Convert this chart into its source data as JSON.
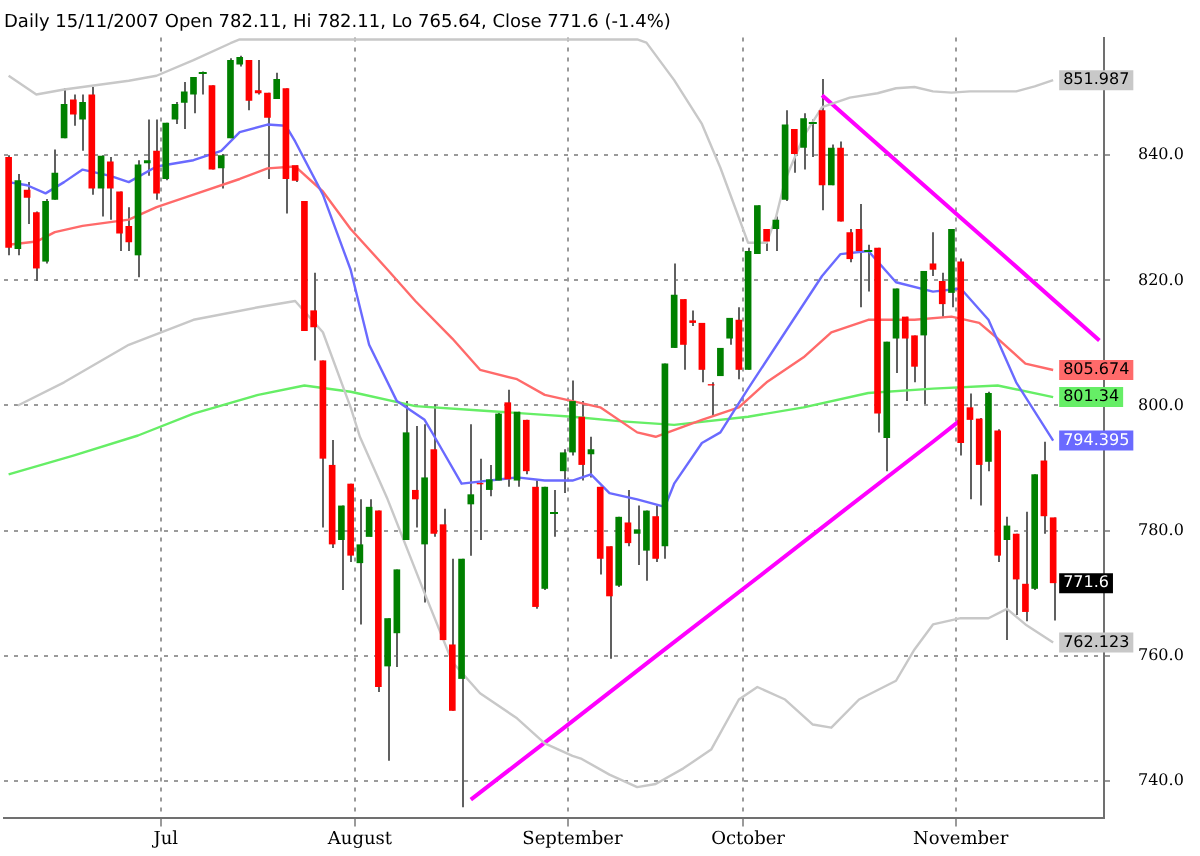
{
  "chart_data": {
    "type": "candlestick",
    "title": "Daily 15/11/2007 Open 782.11, Hi 782.11, Lo 765.64, Close 771.6 (-1.4%)",
    "categories": [
      null,
      null,
      null,
      null,
      null,
      null,
      null,
      null,
      null,
      null,
      null,
      null,
      null,
      null,
      null,
      null,
      null,
      "Jul",
      null,
      null,
      null,
      null,
      null,
      null,
      null,
      null,
      null,
      null,
      null,
      null,
      null,
      null,
      null,
      null,
      null,
      null,
      null,
      null,
      "August",
      null,
      null,
      null,
      null,
      null,
      null,
      null,
      null,
      null,
      null,
      null,
      null,
      null,
      null,
      null,
      null,
      null,
      null,
      null,
      null,
      null,
      null,
      "September",
      null,
      null,
      null,
      null,
      null,
      null,
      null,
      null,
      null,
      null,
      null,
      null,
      null,
      null,
      null,
      null,
      null,
      null,
      "October",
      null,
      null,
      null,
      null,
      null,
      null,
      null,
      null,
      null,
      null,
      null,
      null,
      null,
      null,
      null,
      null,
      null,
      null,
      null,
      null,
      null,
      null,
      "November",
      null,
      null,
      null,
      null,
      null,
      null,
      null,
      null,
      null,
      null,
      null,
      null,
      null,
      null,
      null
    ],
    "ohlc": [
      [
        839.7,
        840,
        824,
        825.2
      ],
      [
        825,
        837,
        824,
        836
      ],
      [
        834.5,
        835.7,
        829,
        833.2
      ],
      [
        830.9,
        831,
        819.9,
        821.9
      ],
      [
        823,
        833,
        822.7,
        832.7
      ],
      [
        832.9,
        840.9,
        832.9,
        837.2
      ],
      [
        842.7,
        850.7,
        842.7,
        848.2
      ],
      [
        848.9,
        849.7,
        844.7,
        846.5
      ],
      [
        845.7,
        849.7,
        840.7,
        848.5
      ],
      [
        849.7,
        850.9,
        833.7,
        834.7
      ],
      [
        834.7,
        840,
        830.2,
        839.9
      ],
      [
        839,
        839.7,
        829.7,
        834.7
      ],
      [
        834.2,
        834.2,
        824.7,
        827.5
      ],
      [
        828.7,
        831.7,
        824.7,
        826.1
      ],
      [
        824,
        839.2,
        820.5,
        838.5
      ],
      [
        838.7,
        845.7,
        836.7,
        839.2
      ],
      [
        840.7,
        845.7,
        832.9,
        833.9
      ],
      [
        836.2,
        845.2,
        836,
        845.2
      ],
      [
        845.7,
        848.5,
        845,
        848.2
      ],
      [
        848.4,
        851.7,
        844.2,
        850.2
      ],
      [
        849.7,
        852.5,
        846.7,
        852.5
      ],
      [
        853.4,
        853.4,
        849.7,
        853.4
      ],
      [
        851.2,
        851.2,
        837.7,
        837.7
      ],
      [
        837.9,
        840.2,
        834.7,
        840
      ],
      [
        842.7,
        855.5,
        842.7,
        855.2
      ],
      [
        854.5,
        855.9,
        854.2,
        855.7
      ],
      [
        855.2,
        855.2,
        847.2,
        848.7
      ],
      [
        850.4,
        855.2,
        849.7,
        849.9
      ],
      [
        850,
        850,
        836.2,
        846
      ],
      [
        849,
        853.2,
        849,
        852.2
      ],
      [
        850.7,
        850.7,
        830.7,
        836.2
      ],
      [
        838.4,
        838.4,
        835.7,
        835.9
      ],
      [
        832.7,
        832.7,
        811.9,
        811.9
      ],
      [
        815.2,
        821.2,
        807.2,
        812.5
      ],
      [
        807.2,
        807.2,
        780.5,
        791.5
      ],
      [
        790.5,
        794.5,
        777.2,
        777.8
      ],
      [
        778.5,
        784,
        770.5,
        784
      ],
      [
        787.5,
        787.5,
        775,
        776
      ],
      [
        774.8,
        785,
        765,
        777.8
      ],
      [
        779,
        785,
        779,
        783.8
      ],
      [
        783.2,
        783.2,
        754.2,
        755
      ],
      [
        758.3,
        766,
        743.2,
        766
      ],
      [
        763.6,
        773.8,
        758.2,
        773.8
      ],
      [
        778.5,
        800.7,
        778.5,
        795.7
      ],
      [
        786.5,
        796.7,
        780.5,
        785
      ],
      [
        777.8,
        797,
        768.5,
        788.5
      ],
      [
        793,
        800.2,
        779,
        779.5
      ],
      [
        781,
        783.5,
        762.5,
        762.5
      ],
      [
        761.8,
        775.5,
        751.2,
        751.2
      ],
      [
        756.3,
        775.5,
        735.8,
        775.5
      ],
      [
        784.2,
        797,
        776,
        785.8
      ],
      [
        787.6,
        791.5,
        778.5,
        787.4
      ],
      [
        786.5,
        790.5,
        785.5,
        788.2
      ],
      [
        788,
        799,
        788,
        798.7
      ],
      [
        800.5,
        802.5,
        787,
        788.2
      ],
      [
        788,
        799,
        787,
        799
      ],
      [
        797.7,
        797.7,
        789,
        789.5
      ],
      [
        787,
        788,
        767.5,
        767.8
      ],
      [
        770.7,
        787,
        770.5,
        787
      ],
      [
        783,
        786.5,
        779,
        783
      ],
      [
        789.5,
        793,
        786,
        792.5
      ],
      [
        792.5,
        804,
        792,
        800.7
      ],
      [
        798.2,
        800.7,
        788,
        790.5
      ],
      [
        792.2,
        795,
        788.5,
        793
      ],
      [
        787,
        787,
        773,
        775.5
      ],
      [
        777.5,
        777.5,
        759.5,
        769.5
      ],
      [
        771.2,
        782.2,
        771,
        782.2
      ],
      [
        781.3,
        786.5,
        777.5,
        778
      ],
      [
        779.5,
        784,
        774.5,
        780.2
      ],
      [
        776.8,
        783.2,
        772,
        783.2
      ],
      [
        782.3,
        784,
        775,
        775.5
      ],
      [
        777.5,
        806.7,
        775.5,
        806.7
      ],
      [
        809.2,
        822.7,
        809.2,
        817.7
      ],
      [
        817,
        817,
        805.7,
        809.7
      ],
      [
        813.6,
        815.2,
        812.7,
        813.2
      ],
      [
        813.2,
        813.2,
        803.7,
        805.7
      ],
      [
        803.4,
        803.7,
        798.2,
        803.2
      ],
      [
        804.7,
        809.2,
        804.7,
        809.2
      ],
      [
        810.7,
        814,
        809.7,
        814
      ],
      [
        813.7,
        815.7,
        804.2,
        805.7
      ],
      [
        805.7,
        825.2,
        805.7,
        824.7
      ],
      [
        824.2,
        832,
        824.2,
        832
      ],
      [
        828.2,
        828.2,
        824.7,
        826.2
      ],
      [
        828.2,
        830.2,
        824.7,
        829.7
      ],
      [
        832.9,
        847.2,
        832.7,
        844.9
      ],
      [
        844.2,
        844.2,
        837.2,
        840.2
      ],
      [
        841.2,
        846.7,
        837.7,
        845.9
      ],
      [
        845.2,
        845.7,
        839.7,
        845.2
      ],
      [
        847.2,
        852.2,
        831.2,
        835.2
      ],
      [
        835.2,
        841.7,
        835.2,
        841.2
      ],
      [
        841.2,
        842.2,
        829.4,
        829.4
      ],
      [
        827.7,
        828.2,
        822.9,
        823.4
      ],
      [
        828.2,
        832.2,
        815.7,
        824.7
      ],
      [
        825,
        825.7,
        818.2,
        825
      ],
      [
        825.2,
        825.2,
        795.7,
        798.7
      ],
      [
        794.8,
        810.2,
        789.5,
        810.2
      ],
      [
        810.7,
        818.7,
        805.2,
        818.7
      ],
      [
        814.2,
        814.2,
        800.7,
        810.7
      ],
      [
        811.2,
        811.2,
        803.7,
        806.2
      ],
      [
        811.2,
        821.5,
        800.2,
        821.5
      ],
      [
        822.7,
        827.7,
        820.7,
        821.7
      ],
      [
        819.9,
        821.2,
        814.2,
        816.2
      ],
      [
        818,
        828.2,
        815.7,
        828.2
      ],
      [
        823,
        823.5,
        792,
        794
      ],
      [
        799.7,
        801.9,
        785,
        797.7
      ],
      [
        797.9,
        798,
        784,
        790.5
      ],
      [
        791,
        802.2,
        789.5,
        802
      ],
      [
        796,
        796.2,
        775,
        776
      ],
      [
        778.5,
        782.2,
        762.5,
        780.8
      ],
      [
        779.5,
        779.5,
        766.5,
        772.2
      ],
      [
        771.5,
        783,
        765.5,
        767
      ],
      [
        770.7,
        789,
        770.5,
        789
      ],
      [
        791.2,
        794.2,
        779.5,
        782.3
      ],
      [
        782.11,
        782.11,
        765.64,
        771.6
      ],
      null,
      null,
      null,
      null,
      null
    ],
    "series": [
      {
        "type": "line",
        "color": "#c8c8c8",
        "values": [
          852.7,
          null,
          null,
          849.7,
          null,
          null,
          850.5,
          null,
          null,
          null,
          null,
          null,
          null,
          851.9,
          null,
          null,
          852.7,
          null,
          null,
          null,
          855.2,
          null,
          null,
          null,
          857.9,
          858.5,
          null,
          null,
          null,
          null,
          null,
          null,
          null,
          null,
          null,
          null,
          null,
          null,
          null,
          null,
          null,
          null,
          null,
          null,
          null,
          null,
          null,
          null,
          null,
          null,
          null,
          null,
          null,
          null,
          null,
          null,
          null,
          null,
          null,
          null,
          null,
          null,
          null,
          null,
          null,
          null,
          null,
          null,
          858.5,
          858,
          null,
          null,
          852,
          null,
          null,
          845,
          null,
          838,
          null,
          830,
          826,
          null,
          826,
          830,
          836,
          null,
          843,
          null,
          847.7,
          null,
          null,
          849.2,
          null,
          null,
          849.9,
          null,
          850.7,
          null,
          850.9,
          null,
          850.2,
          null,
          850,
          null,
          850.2,
          null,
          null,
          850.2,
          null,
          850.2,
          null,
          851,
          null,
          851.987,
          null,
          null,
          null,
          null,
          null
        ],
        "value_labels": [
          null,
          null,
          null,
          null,
          null,
          null,
          null,
          null,
          null,
          null,
          null,
          null,
          null,
          null,
          null,
          null,
          null,
          null,
          null,
          null,
          null,
          null,
          null,
          null,
          null,
          null,
          null,
          null,
          null,
          null,
          null,
          null,
          null,
          null,
          null,
          null,
          null,
          null,
          null,
          null,
          null,
          null,
          null,
          null,
          null,
          null,
          null,
          null,
          null,
          null,
          null,
          null,
          null,
          null,
          null,
          null,
          null,
          null,
          null,
          null,
          null,
          null,
          null,
          null,
          null,
          null,
          null,
          null,
          null,
          null,
          null,
          null,
          null,
          null,
          null,
          null,
          null,
          null,
          null,
          null,
          null,
          null,
          null,
          null,
          null,
          null,
          null,
          null,
          null,
          null,
          null,
          null,
          null,
          null,
          null,
          null,
          null,
          null,
          null,
          null,
          null,
          null,
          null,
          null,
          null,
          null,
          null,
          null,
          null,
          null,
          null,
          null,
          null,
          "851.987",
          null,
          null,
          null,
          null,
          null
        ]
      },
      {
        "type": "line",
        "color": "#c8c8c8",
        "values": [
          null,
          800,
          null,
          null,
          null,
          null,
          803.7,
          null,
          null,
          null,
          null,
          null,
          null,
          809.7,
          null,
          null,
          null,
          null,
          null,
          null,
          813.7,
          null,
          null,
          null,
          null,
          null,
          null,
          815.7,
          null,
          null,
          null,
          816.7,
          null,
          null,
          811.7,
          null,
          null,
          799.7,
          795,
          null,
          null,
          785,
          null,
          null,
          null,
          770,
          null,
          null,
          759,
          null,
          null,
          754,
          null,
          null,
          null,
          750,
          null,
          null,
          746,
          null,
          null,
          744,
          743.5,
          null,
          null,
          741,
          null,
          null,
          739,
          null,
          739.5,
          null,
          null,
          742,
          null,
          null,
          745,
          null,
          null,
          753,
          null,
          755,
          null,
          null,
          753,
          null,
          null,
          749,
          null,
          748.5,
          null,
          null,
          753,
          null,
          null,
          null,
          756,
          null,
          761,
          null,
          765,
          null,
          null,
          766,
          null,
          null,
          766,
          null,
          767.5,
          null,
          765,
          null,
          null,
          762.123,
          null,
          null,
          null,
          null,
          null
        ],
        "value_labels": [
          null,
          null,
          null,
          null,
          null,
          null,
          null,
          null,
          null,
          null,
          null,
          null,
          null,
          null,
          null,
          null,
          null,
          null,
          null,
          null,
          null,
          null,
          null,
          null,
          null,
          null,
          null,
          null,
          null,
          null,
          null,
          null,
          null,
          null,
          null,
          null,
          null,
          null,
          null,
          null,
          null,
          null,
          null,
          null,
          null,
          null,
          null,
          null,
          null,
          null,
          null,
          null,
          null,
          null,
          null,
          null,
          null,
          null,
          null,
          null,
          null,
          null,
          null,
          null,
          null,
          null,
          null,
          null,
          null,
          null,
          null,
          null,
          null,
          null,
          null,
          null,
          null,
          null,
          null,
          null,
          null,
          null,
          null,
          null,
          null,
          null,
          null,
          null,
          null,
          null,
          null,
          null,
          null,
          null,
          null,
          null,
          null,
          null,
          null,
          null,
          null,
          null,
          null,
          null,
          null,
          null,
          null,
          null,
          null,
          null,
          null,
          null,
          null,
          "762.123",
          null,
          null,
          null,
          null,
          null
        ]
      },
      {
        "type": "line",
        "color": "#6a6aff",
        "values": [
          835.7,
          null,
          835.2,
          null,
          833.9,
          null,
          835.7,
          null,
          837.7,
          null,
          null,
          836.7,
          null,
          835.7,
          null,
          null,
          838.2,
          null,
          null,
          null,
          839.2,
          null,
          null,
          840.7,
          null,
          843.7,
          null,
          null,
          844.9,
          null,
          844.7,
          842.2,
          null,
          null,
          833.7,
          null,
          null,
          821.7,
          null,
          809.7,
          null,
          null,
          800.7,
          null,
          null,
          797.7,
          795.2,
          null,
          null,
          787.5,
          null,
          null,
          null,
          null,
          null,
          788.5,
          null,
          null,
          788,
          null,
          null,
          788,
          null,
          789,
          null,
          786,
          null,
          null,
          785,
          null,
          null,
          783.8,
          787.5,
          null,
          null,
          794,
          null,
          795.7,
          null,
          null,
          802.7,
          null,
          null,
          null,
          811.7,
          null,
          null,
          null,
          820.7,
          null,
          824.2,
          null,
          null,
          824.7,
          null,
          null,
          819.7,
          null,
          null,
          null,
          818.2,
          null,
          null,
          818.7,
          null,
          null,
          813.7,
          null,
          null,
          803.7,
          null,
          null,
          null,
          794.395,
          null,
          null,
          null,
          null,
          null
        ],
        "value_labels": [
          null,
          null,
          null,
          null,
          null,
          null,
          null,
          null,
          null,
          null,
          null,
          null,
          null,
          null,
          null,
          null,
          null,
          null,
          null,
          null,
          null,
          null,
          null,
          null,
          null,
          null,
          null,
          null,
          null,
          null,
          null,
          null,
          null,
          null,
          null,
          null,
          null,
          null,
          null,
          null,
          null,
          null,
          null,
          null,
          null,
          null,
          null,
          null,
          null,
          null,
          null,
          null,
          null,
          null,
          null,
          null,
          null,
          null,
          null,
          null,
          null,
          null,
          null,
          null,
          null,
          null,
          null,
          null,
          null,
          null,
          null,
          null,
          null,
          null,
          null,
          null,
          null,
          null,
          null,
          null,
          null,
          null,
          null,
          null,
          null,
          null,
          null,
          null,
          null,
          null,
          null,
          null,
          null,
          null,
          null,
          null,
          null,
          null,
          null,
          null,
          null,
          null,
          null,
          null,
          null,
          null,
          null,
          null,
          null,
          null,
          null,
          null,
          null,
          "794.395",
          null,
          null,
          null,
          null,
          null
        ]
      },
      {
        "type": "line",
        "color": "#ff6a6a",
        "values": [
          825.7,
          null,
          null,
          826.2,
          null,
          827.7,
          null,
          null,
          828.7,
          null,
          null,
          null,
          null,
          829.7,
          null,
          null,
          831.7,
          null,
          null,
          null,
          833.7,
          null,
          null,
          null,
          null,
          836.2,
          null,
          null,
          837.9,
          null,
          null,
          838.2,
          null,
          null,
          834.2,
          null,
          null,
          828.2,
          null,
          null,
          null,
          821.7,
          null,
          null,
          816.7,
          null,
          null,
          null,
          810.7,
          null,
          null,
          805.7,
          null,
          null,
          null,
          804.2,
          null,
          null,
          801.7,
          null,
          null,
          800.7,
          null,
          null,
          799.7,
          null,
          null,
          null,
          795.7,
          null,
          795,
          null,
          null,
          null,
          null,
          797.7,
          null,
          null,
          null,
          799.7,
          null,
          null,
          803.7,
          null,
          null,
          null,
          807.7,
          null,
          null,
          811.7,
          null,
          null,
          null,
          813.7,
          null,
          null,
          null,
          null,
          813.7,
          null,
          null,
          null,
          814.2,
          null,
          null,
          813.2,
          null,
          810.7,
          null,
          null,
          806.7,
          null,
          null,
          805.674,
          null,
          null,
          null,
          null,
          null
        ],
        "value_labels": [
          null,
          null,
          null,
          null,
          null,
          null,
          null,
          null,
          null,
          null,
          null,
          null,
          null,
          null,
          null,
          null,
          null,
          null,
          null,
          null,
          null,
          null,
          null,
          null,
          null,
          null,
          null,
          null,
          null,
          null,
          null,
          null,
          null,
          null,
          null,
          null,
          null,
          null,
          null,
          null,
          null,
          null,
          null,
          null,
          null,
          null,
          null,
          null,
          null,
          null,
          null,
          null,
          null,
          null,
          null,
          null,
          null,
          null,
          null,
          null,
          null,
          null,
          null,
          null,
          null,
          null,
          null,
          null,
          null,
          null,
          null,
          null,
          null,
          null,
          null,
          null,
          null,
          null,
          null,
          null,
          null,
          null,
          null,
          null,
          null,
          null,
          null,
          null,
          null,
          null,
          null,
          null,
          null,
          null,
          null,
          null,
          null,
          null,
          null,
          null,
          null,
          null,
          null,
          null,
          null,
          null,
          null,
          null,
          null,
          null,
          null,
          null,
          null,
          "805.674",
          null,
          null,
          null,
          null,
          null
        ]
      },
      {
        "type": "line",
        "color": "#66ee66",
        "values": [
          789,
          null,
          null,
          null,
          null,
          null,
          null,
          792,
          null,
          null,
          null,
          null,
          null,
          null,
          795.2,
          null,
          null,
          null,
          null,
          null,
          798.7,
          null,
          null,
          null,
          null,
          null,
          null,
          801.7,
          null,
          null,
          null,
          null,
          803.2,
          null,
          null,
          null,
          null,
          802.2,
          null,
          null,
          null,
          null,
          null,
          null,
          799.9,
          null,
          null,
          null,
          null,
          null,
          null,
          799.2,
          null,
          null,
          null,
          null,
          null,
          null,
          798.5,
          null,
          null,
          798.2,
          null,
          null,
          null,
          null,
          797.5,
          null,
          null,
          null,
          null,
          null,
          796.9,
          null,
          null,
          null,
          null,
          null,
          null,
          null,
          798.2,
          null,
          null,
          null,
          null,
          null,
          799.7,
          null,
          null,
          null,
          null,
          null,
          null,
          802,
          null,
          null,
          null,
          null,
          null,
          null,
          802.7,
          null,
          null,
          null,
          null,
          null,
          null,
          803.2,
          null,
          null,
          null,
          null,
          null,
          801.34,
          null,
          null,
          null,
          null,
          null
        ],
        "value_labels": [
          null,
          null,
          null,
          null,
          null,
          null,
          null,
          null,
          null,
          null,
          null,
          null,
          null,
          null,
          null,
          null,
          null,
          null,
          null,
          null,
          null,
          null,
          null,
          null,
          null,
          null,
          null,
          null,
          null,
          null,
          null,
          null,
          null,
          null,
          null,
          null,
          null,
          null,
          null,
          null,
          null,
          null,
          null,
          null,
          null,
          null,
          null,
          null,
          null,
          null,
          null,
          null,
          null,
          null,
          null,
          null,
          null,
          null,
          null,
          null,
          null,
          null,
          null,
          null,
          null,
          null,
          null,
          null,
          null,
          null,
          null,
          null,
          null,
          null,
          null,
          null,
          null,
          null,
          null,
          null,
          null,
          null,
          null,
          null,
          null,
          null,
          null,
          null,
          null,
          null,
          null,
          null,
          null,
          null,
          null,
          null,
          null,
          null,
          null,
          null,
          null,
          null,
          null,
          null,
          null,
          null,
          null,
          null,
          null,
          null,
          null,
          null,
          null,
          "801.34",
          null,
          null,
          null,
          null,
          null
        ]
      },
      {
        "type": "line",
        "color": "#ff00ff",
        "values": [
          null,
          null,
          null,
          null,
          null,
          null,
          null,
          null,
          null,
          null,
          null,
          null,
          null,
          null,
          null,
          null,
          null,
          null,
          null,
          null,
          null,
          null,
          null,
          null,
          null,
          null,
          null,
          null,
          null,
          null,
          null,
          null,
          null,
          null,
          null,
          null,
          null,
          null,
          null,
          null,
          null,
          null,
          null,
          null,
          null,
          null,
          null,
          null,
          null,
          null,
          737,
          null,
          null,
          null,
          null,
          null,
          null,
          null,
          null,
          null,
          748.4,
          null,
          null,
          null,
          null,
          null,
          null,
          null,
          null,
          null,
          759.9,
          null,
          null,
          null,
          null,
          null,
          null,
          null,
          null,
          null,
          771.3,
          null,
          null,
          null,
          null,
          null,
          null,
          null,
          null,
          null,
          782.8,
          null,
          null,
          null,
          null,
          null,
          null,
          null,
          null,
          null,
          794.2,
          null,
          null,
          797.7,
          null,
          null,
          null,
          null,
          null,
          null,
          null,
          null,
          null,
          null,
          null,
          null,
          null,
          null,
          null
        ]
      },
      {
        "type": "line",
        "color": "#ff00ff",
        "values": [
          null,
          null,
          null,
          null,
          null,
          null,
          null,
          null,
          null,
          null,
          null,
          null,
          null,
          null,
          null,
          null,
          null,
          null,
          null,
          null,
          null,
          null,
          null,
          null,
          null,
          null,
          null,
          null,
          null,
          null,
          null,
          null,
          null,
          null,
          null,
          null,
          null,
          null,
          null,
          null,
          null,
          null,
          null,
          null,
          null,
          null,
          null,
          null,
          null,
          null,
          null,
          null,
          null,
          null,
          null,
          null,
          null,
          null,
          null,
          null,
          null,
          null,
          null,
          null,
          null,
          null,
          null,
          null,
          null,
          null,
          null,
          null,
          null,
          null,
          null,
          null,
          null,
          null,
          null,
          null,
          null,
          null,
          null,
          null,
          null,
          null,
          null,
          null,
          849.6,
          null,
          null,
          null,
          null,
          null,
          null,
          null,
          null,
          null,
          836.5,
          null,
          null,
          null,
          null,
          null,
          null,
          null,
          null,
          null,
          823.5,
          null,
          null,
          null,
          null,
          null,
          null,
          null,
          null,
          null,
          810.4
        ]
      }
    ],
    "ylim": [
      734,
      858.8
    ],
    "yticks": [
      {
        "value": 740,
        "label": "740.0"
      },
      {
        "value": 760,
        "label": "760.0"
      },
      {
        "value": 780,
        "label": "780.0"
      },
      {
        "value": 800,
        "label": "800.0"
      },
      {
        "value": 820,
        "label": "820.0"
      },
      {
        "value": 840,
        "label": "840.0"
      }
    ],
    "value_labels": [
      null,
      null,
      null,
      null,
      null,
      null,
      null,
      null,
      null,
      null,
      null,
      null,
      null,
      null,
      null,
      null,
      null,
      null,
      null,
      null,
      null,
      null,
      null,
      null,
      null,
      null,
      null,
      null,
      null,
      null,
      null,
      null,
      null,
      null,
      null,
      null,
      null,
      null,
      null,
      null,
      null,
      null,
      null,
      null,
      null,
      null,
      null,
      null,
      null,
      null,
      null,
      null,
      null,
      null,
      null,
      null,
      null,
      null,
      null,
      null,
      null,
      null,
      null,
      null,
      null,
      null,
      null,
      null,
      null,
      null,
      null,
      null,
      null,
      null,
      null,
      null,
      null,
      null,
      null,
      null,
      null,
      null,
      null,
      null,
      null,
      null,
      null,
      null,
      null,
      null,
      null,
      null,
      null,
      null,
      null,
      null,
      null,
      null,
      null,
      null,
      null,
      null,
      null,
      null,
      null,
      null,
      null,
      null,
      null,
      null,
      null,
      null,
      null,
      "771.6",
      null,
      null,
      null,
      null,
      null
    ],
    "grid": true,
    "legend": false
  }
}
